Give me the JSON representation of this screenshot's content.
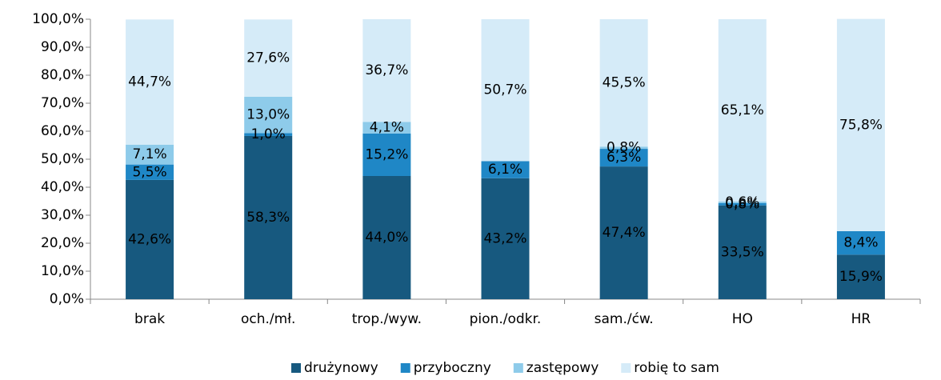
{
  "chart_data": {
    "type": "bar",
    "stacked": true,
    "categories": [
      "brak",
      "och./mł.",
      "trop./wyw.",
      "pion./odkr.",
      "sam./ćw.",
      "HO",
      "HR"
    ],
    "series": [
      {
        "name": "drużynowy",
        "color": "#17597f",
        "values": [
          42.6,
          58.3,
          44.0,
          43.2,
          47.4,
          33.5,
          15.9
        ],
        "value_labels": [
          "42,6%",
          "58,3%",
          "44,0%",
          "43,2%",
          "47,4%",
          "33,5%",
          "15,9%"
        ]
      },
      {
        "name": "przyboczny",
        "color": "#1f87c6",
        "values": [
          5.5,
          1.0,
          15.2,
          6.1,
          6.3,
          0.8,
          8.4
        ],
        "value_labels": [
          "5,5%",
          "1,0%",
          "15,2%",
          "6,1%",
          "6,3%",
          "0,8%",
          "8,4%"
        ]
      },
      {
        "name": "zastępowy",
        "color": "#8ecbea",
        "values": [
          7.1,
          13.0,
          4.1,
          null,
          0.8,
          0.6,
          null
        ],
        "value_labels": [
          "7,1%",
          "13,0%",
          "4,1%",
          null,
          "0,8%",
          "0,6%",
          null
        ]
      },
      {
        "name": "robię to sam",
        "color": "#d5ebf8",
        "values": [
          44.7,
          27.6,
          36.7,
          50.7,
          45.5,
          65.1,
          75.8
        ],
        "value_labels": [
          "44,7%",
          "27,6%",
          "36,7%",
          "50,7%",
          "45,5%",
          "65,1%",
          "75,8%"
        ]
      }
    ],
    "ylim": [
      0,
      100
    ],
    "yticks": [
      {
        "value": 0,
        "label": "0,0%"
      },
      {
        "value": 10,
        "label": "10,0%"
      },
      {
        "value": 20,
        "label": "20,0%"
      },
      {
        "value": 30,
        "label": "30,0%"
      },
      {
        "value": 40,
        "label": "40,0%"
      },
      {
        "value": 50,
        "label": "50,0%"
      },
      {
        "value": 60,
        "label": "60,0%"
      },
      {
        "value": 70,
        "label": "70,0%"
      },
      {
        "value": 80,
        "label": "80,0%"
      },
      {
        "value": 90,
        "label": "90,0%"
      },
      {
        "value": 100,
        "label": "100,0%"
      }
    ],
    "grid": false,
    "legend": "bottom"
  }
}
